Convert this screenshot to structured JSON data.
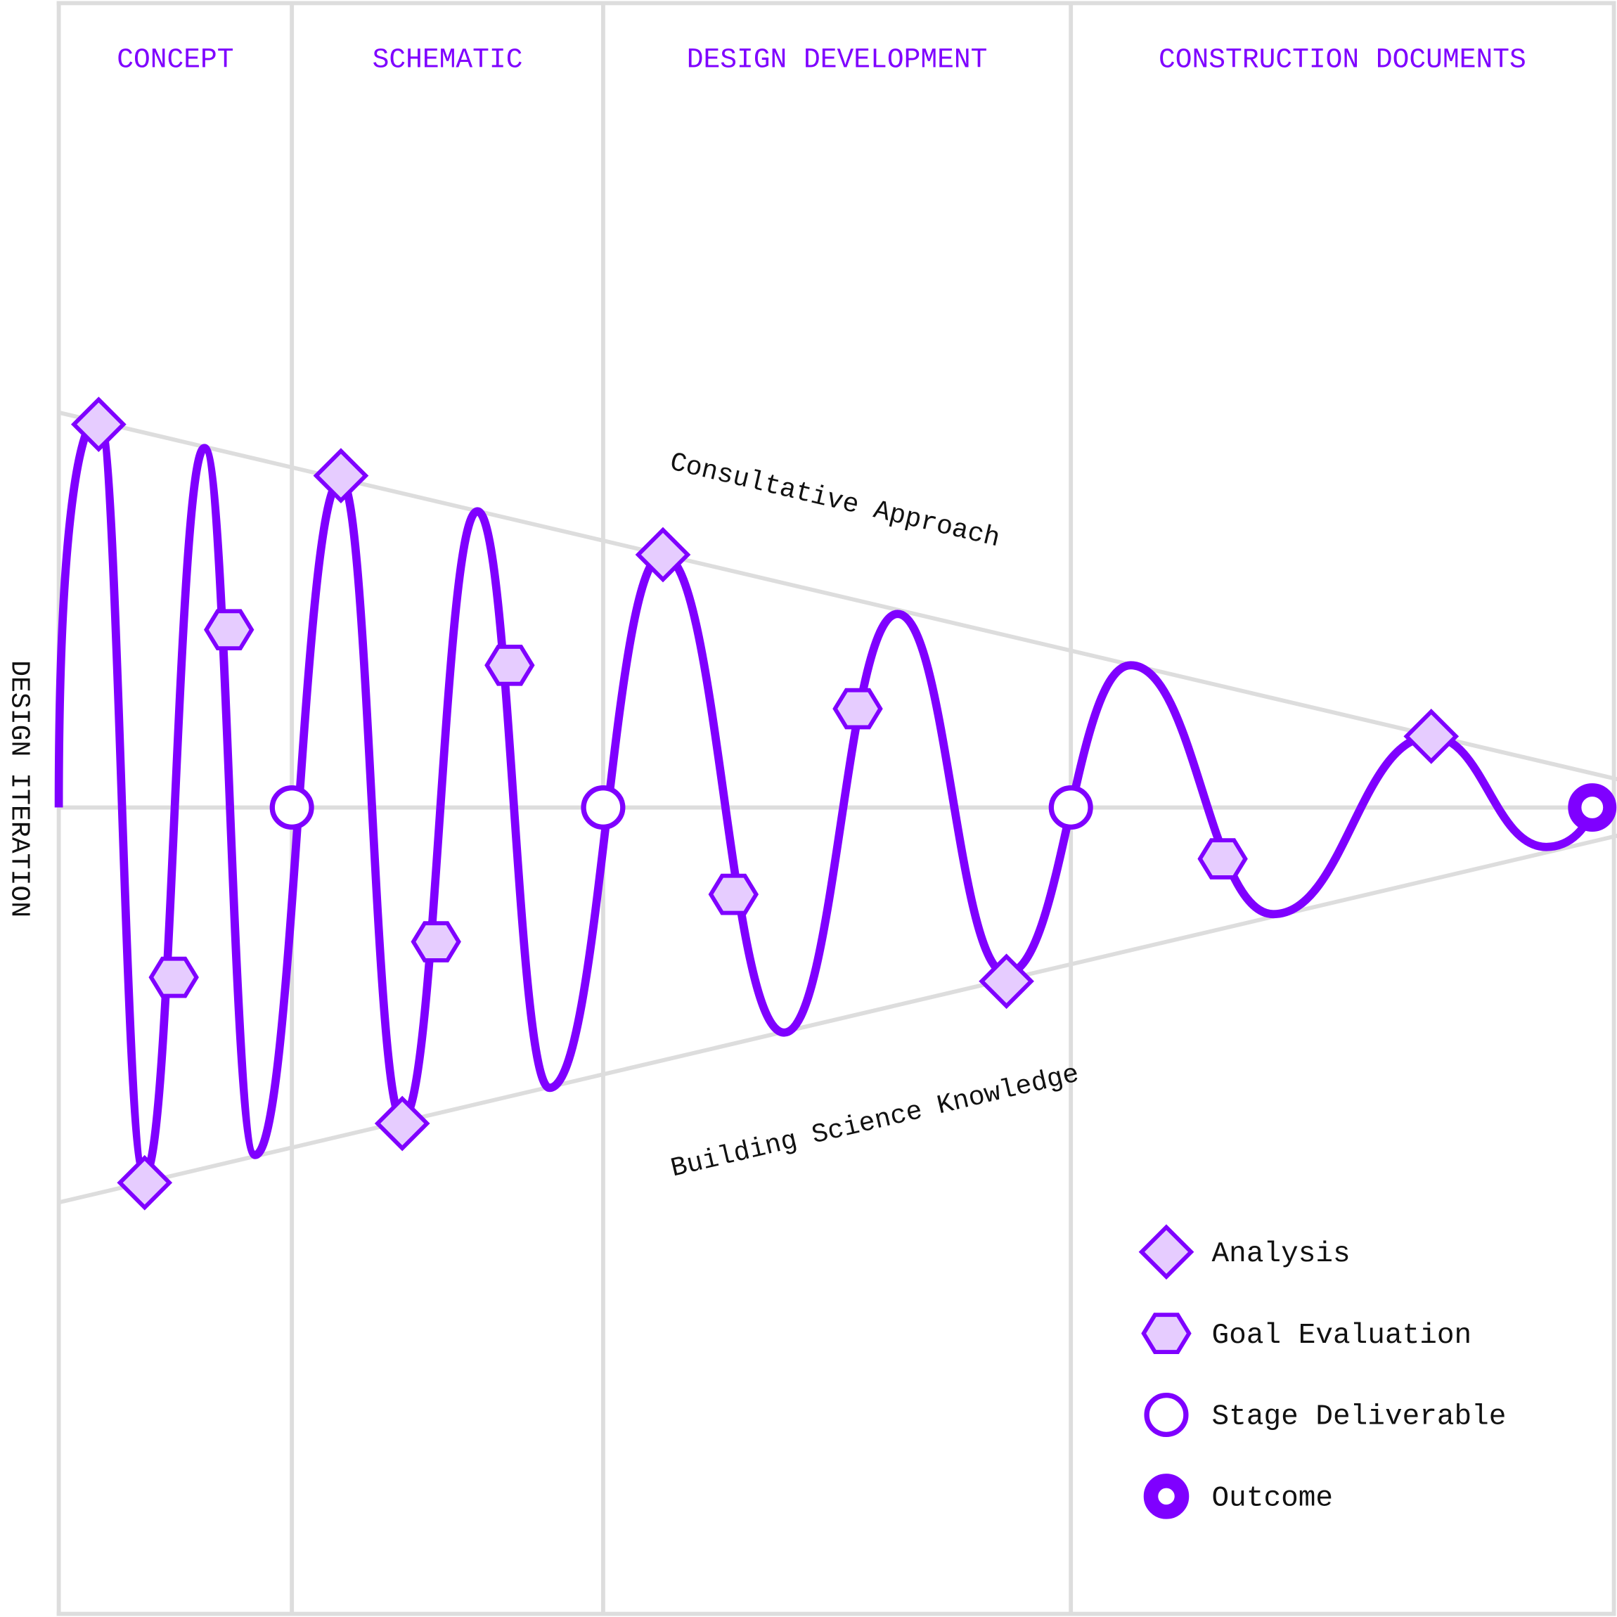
{
  "chart_data": {
    "type": "line",
    "title": "",
    "ylabel": "DESIGN ITERATION",
    "xlim": [
      0,
      101.8
    ],
    "ylim": [
      -1.0,
      1.0
    ],
    "colors": {
      "accent": "#7F00FF",
      "marker_fill": "#E6CCFF",
      "grid": "#DDDDDD",
      "text": "#111111"
    },
    "phases": [
      {
        "label": "CONCEPT",
        "start": 0,
        "end": 15.2
      },
      {
        "label": "SCHEMATIC",
        "start": 15.2,
        "end": 35.5
      },
      {
        "label": "DESIGN DEVELOPMENT",
        "start": 35.5,
        "end": 66.0
      },
      {
        "label": "CONSTRUCTION DOCUMENTS",
        "start": 66.0,
        "end": 101.8
      }
    ],
    "bounds": {
      "upper": {
        "label": "Consultative Approach",
        "from": [
          0,
          1.0
        ],
        "to": [
          101.8,
          0.07
        ]
      },
      "lower": {
        "label": "Building Science Knowledge",
        "from": [
          0,
          -1.0
        ],
        "to": [
          101.8,
          -0.07
        ]
      }
    },
    "curve_extrema": [
      [
        0,
        0
      ],
      [
        2.6,
        0.99
      ],
      [
        5.6,
        -0.93
      ],
      [
        9.5,
        0.91
      ],
      [
        12.8,
        -0.88
      ],
      [
        18.4,
        0.83
      ],
      [
        22.4,
        -0.79
      ],
      [
        27.3,
        0.75
      ],
      [
        32.0,
        -0.71
      ],
      [
        39.4,
        0.64
      ],
      [
        47.3,
        -0.57
      ],
      [
        54.7,
        0.49
      ],
      [
        61.8,
        -0.42
      ],
      [
        69.9,
        0.36
      ],
      [
        79.2,
        -0.27
      ],
      [
        89.5,
        0.18
      ],
      [
        97.0,
        -0.1
      ],
      [
        100,
        0
      ]
    ],
    "markers": {
      "analysis": [
        [
          2.6,
          0.97
        ],
        [
          5.6,
          -0.95
        ],
        [
          18.4,
          0.84
        ],
        [
          22.4,
          -0.8
        ],
        [
          39.4,
          0.64
        ],
        [
          61.8,
          -0.44
        ],
        [
          89.5,
          0.18
        ]
      ],
      "goal_evaluation": [
        [
          7.5,
          -0.43
        ],
        [
          11.1,
          0.45
        ],
        [
          24.6,
          -0.34
        ],
        [
          29.4,
          0.36
        ],
        [
          44.0,
          -0.22
        ],
        [
          52.1,
          0.25
        ],
        [
          75.9,
          -0.13
        ]
      ],
      "stage_deliverable": [
        [
          15.2,
          0
        ],
        [
          35.5,
          0
        ],
        [
          66.0,
          0
        ]
      ],
      "outcome": [
        [
          100,
          0
        ]
      ]
    },
    "legend": {
      "placement": "bottom-right",
      "items": [
        {
          "key": "analysis",
          "label": "Analysis"
        },
        {
          "key": "goal_evaluation",
          "label": "Goal Evaluation"
        },
        {
          "key": "stage_deliverable",
          "label": "Stage Deliverable"
        },
        {
          "key": "outcome",
          "label": "Outcome"
        }
      ]
    }
  }
}
